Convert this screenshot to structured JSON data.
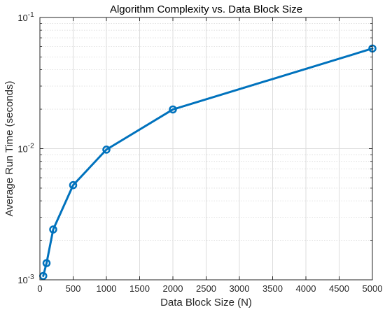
{
  "chart_data": {
    "type": "line",
    "title": "Algorithm Complexity vs. Data Block Size",
    "xlabel": "Data Block Size (N)",
    "ylabel": "Average Run Time (seconds)",
    "xlim": [
      0,
      5000
    ],
    "ylim": [
      0.001,
      0.1
    ],
    "yscale": "log",
    "grid": true,
    "minor_grid": true,
    "x_ticks": [
      0,
      500,
      1000,
      1500,
      2000,
      2500,
      3000,
      3500,
      4000,
      4500,
      5000
    ],
    "x_tick_labels": [
      "0",
      "500",
      "1000",
      "1500",
      "2000",
      "2500",
      "3000",
      "3500",
      "4000",
      "4500",
      "5000"
    ],
    "y_ticks": [
      {
        "value": 0.001,
        "base": "10",
        "exp": "-3"
      },
      {
        "value": 0.01,
        "base": "10",
        "exp": "-2"
      },
      {
        "value": 0.1,
        "base": "10",
        "exp": "-1"
      }
    ],
    "series": [
      {
        "color": "#0072BD",
        "marker": "circle",
        "x": [
          50,
          100,
          200,
          500,
          1000,
          2000,
          5000
        ],
        "values": [
          0.00107,
          0.00134,
          0.00242,
          0.00527,
          0.00983,
          0.0199,
          0.058
        ]
      }
    ]
  }
}
